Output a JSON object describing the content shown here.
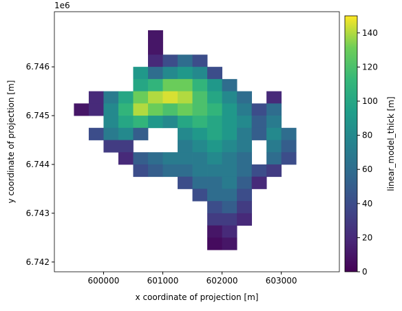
{
  "chart_data": {
    "type": "heatmap",
    "xlabel": "x coordinate of projection [m]",
    "ylabel": "y coordinate of projection [m]",
    "y_offset_label": "1e6",
    "colorbar_label": "linear_model_thick [m]",
    "colormap": "viridis",
    "xlim": [
      599170,
      603980
    ],
    "ylim": [
      6741800,
      6747130
    ],
    "xticks": [
      600000,
      601000,
      602000,
      603000
    ],
    "yticks": [
      {
        "value": 6742000,
        "label": "6.742"
      },
      {
        "value": 6743000,
        "label": "6.743"
      },
      {
        "value": 6744000,
        "label": "6.744"
      },
      {
        "value": 6745000,
        "label": "6.745"
      },
      {
        "value": 6746000,
        "label": "6.746"
      }
    ],
    "clim": [
      0,
      150
    ],
    "cticks": [
      0,
      20,
      40,
      60,
      80,
      100,
      120,
      140
    ],
    "x": [
      599625,
      599875,
      600125,
      600375,
      600625,
      600875,
      601125,
      601375,
      601625,
      601875,
      602125,
      602375,
      602625,
      602875,
      603125,
      603375
    ],
    "y": [
      6746625,
      6746375,
      6746125,
      6745875,
      6745625,
      6745375,
      6745125,
      6744875,
      6744625,
      6744375,
      6744125,
      6743875,
      6743625,
      6743375,
      6743125,
      6742875,
      6742625,
      6742375
    ],
    "z": [
      [
        null,
        null,
        null,
        null,
        null,
        10,
        null,
        null,
        null,
        null,
        null,
        null,
        null,
        null,
        null,
        null
      ],
      [
        null,
        null,
        null,
        null,
        null,
        10,
        null,
        null,
        null,
        null,
        null,
        null,
        null,
        null,
        null,
        null
      ],
      [
        null,
        null,
        null,
        null,
        null,
        20,
        40,
        60,
        40,
        null,
        null,
        null,
        null,
        null,
        null,
        null
      ],
      [
        null,
        null,
        null,
        null,
        90,
        60,
        80,
        90,
        80,
        40,
        null,
        null,
        null,
        null,
        null,
        null
      ],
      [
        null,
        null,
        null,
        null,
        100,
        110,
        130,
        130,
        110,
        90,
        60,
        null,
        null,
        null,
        null,
        null
      ],
      [
        null,
        20,
        70,
        100,
        130,
        140,
        145,
        140,
        120,
        100,
        80,
        60,
        null,
        20,
        null,
        null
      ],
      [
        10,
        20,
        80,
        110,
        140,
        130,
        120,
        130,
        120,
        110,
        90,
        70,
        40,
        60,
        null,
        null
      ],
      [
        null,
        null,
        80,
        100,
        110,
        90,
        80,
        100,
        110,
        100,
        90,
        80,
        50,
        70,
        null,
        null
      ],
      [
        null,
        40,
        70,
        80,
        50,
        null,
        null,
        80,
        90,
        100,
        90,
        70,
        50,
        80,
        60,
        null
      ],
      [
        null,
        null,
        30,
        30,
        null,
        null,
        null,
        70,
        80,
        90,
        80,
        70,
        null,
        70,
        50,
        null
      ],
      [
        null,
        null,
        null,
        20,
        50,
        60,
        70,
        70,
        70,
        80,
        70,
        60,
        null,
        60,
        40,
        null
      ],
      [
        null,
        null,
        null,
        null,
        40,
        50,
        60,
        60,
        70,
        70,
        70,
        60,
        40,
        30,
        null,
        null
      ],
      [
        null,
        null,
        null,
        null,
        null,
        null,
        null,
        40,
        60,
        60,
        70,
        50,
        20,
        null,
        null,
        null
      ],
      [
        null,
        null,
        null,
        null,
        null,
        null,
        null,
        null,
        40,
        60,
        60,
        40,
        null,
        null,
        null,
        null
      ],
      [
        null,
        null,
        null,
        null,
        null,
        null,
        null,
        null,
        null,
        40,
        50,
        30,
        null,
        null,
        null,
        null
      ],
      [
        null,
        null,
        null,
        null,
        null,
        null,
        null,
        null,
        null,
        30,
        30,
        20,
        null,
        null,
        null,
        null
      ],
      [
        null,
        null,
        null,
        null,
        null,
        null,
        null,
        null,
        null,
        10,
        20,
        null,
        null,
        null,
        null,
        null
      ],
      [
        null,
        null,
        null,
        null,
        null,
        null,
        null,
        null,
        null,
        5,
        10,
        null,
        null,
        null,
        null,
        null
      ]
    ]
  }
}
